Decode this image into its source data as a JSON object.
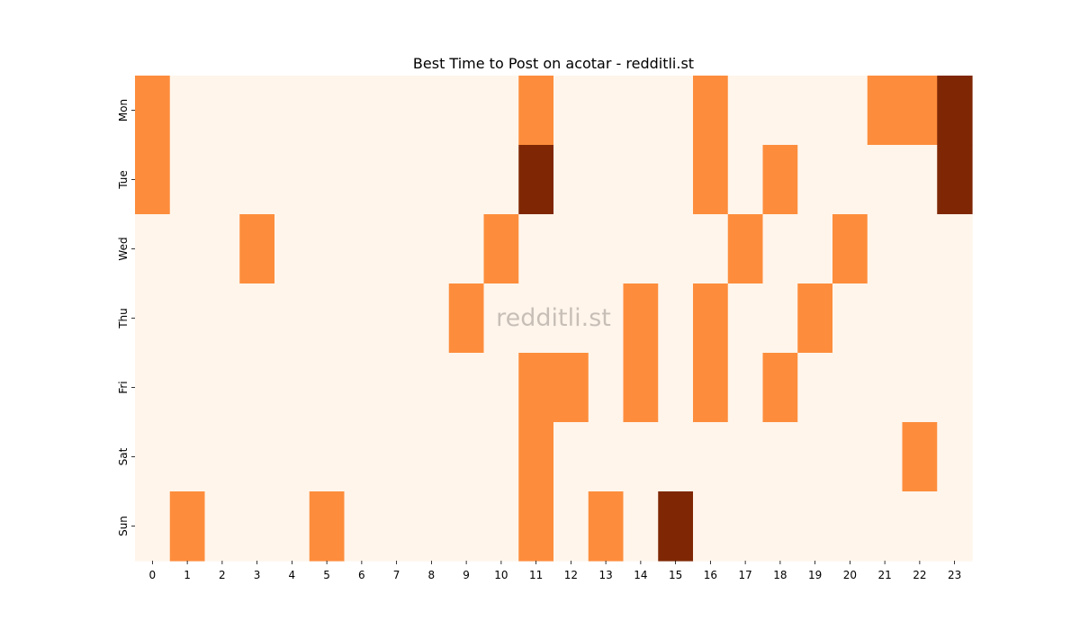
{
  "chart_data": {
    "type": "heatmap",
    "title": "Best Time to Post on acotar - redditli.st",
    "xlabel": "",
    "ylabel": "",
    "x_categories": [
      "0",
      "1",
      "2",
      "3",
      "4",
      "5",
      "6",
      "7",
      "8",
      "9",
      "10",
      "11",
      "12",
      "13",
      "14",
      "15",
      "16",
      "17",
      "18",
      "19",
      "20",
      "21",
      "22",
      "23"
    ],
    "y_categories": [
      "Mon",
      "Tue",
      "Wed",
      "Thu",
      "Fri",
      "Sat",
      "Sun"
    ],
    "values": [
      [
        1,
        0,
        0,
        0,
        0,
        0,
        0,
        0,
        0,
        0,
        0,
        1,
        0,
        0,
        0,
        0,
        1,
        0,
        0,
        0,
        0,
        1,
        1,
        2
      ],
      [
        1,
        0,
        0,
        0,
        0,
        0,
        0,
        0,
        0,
        0,
        0,
        2,
        0,
        0,
        0,
        0,
        1,
        0,
        1,
        0,
        0,
        0,
        0,
        2
      ],
      [
        0,
        0,
        0,
        1,
        0,
        0,
        0,
        0,
        0,
        0,
        1,
        0,
        0,
        0,
        0,
        0,
        0,
        1,
        0,
        0,
        1,
        0,
        0,
        0
      ],
      [
        0,
        0,
        0,
        0,
        0,
        0,
        0,
        0,
        0,
        1,
        0,
        0,
        0,
        0,
        1,
        0,
        1,
        0,
        0,
        1,
        0,
        0,
        0,
        0
      ],
      [
        0,
        0,
        0,
        0,
        0,
        0,
        0,
        0,
        0,
        0,
        0,
        1,
        1,
        0,
        1,
        0,
        1,
        0,
        1,
        0,
        0,
        0,
        0,
        0
      ],
      [
        0,
        0,
        0,
        0,
        0,
        0,
        0,
        0,
        0,
        0,
        0,
        1,
        0,
        0,
        0,
        0,
        0,
        0,
        0,
        0,
        0,
        0,
        1,
        0
      ],
      [
        0,
        1,
        0,
        0,
        0,
        1,
        0,
        0,
        0,
        0,
        0,
        1,
        0,
        1,
        0,
        2,
        0,
        0,
        0,
        0,
        0,
        0,
        0,
        0
      ]
    ],
    "colorscale": {
      "0": "#fff5eb",
      "1": "#fd8d3c",
      "2": "#7f2704"
    },
    "colorbar": false,
    "grid": false
  },
  "watermark": "redditli.st"
}
